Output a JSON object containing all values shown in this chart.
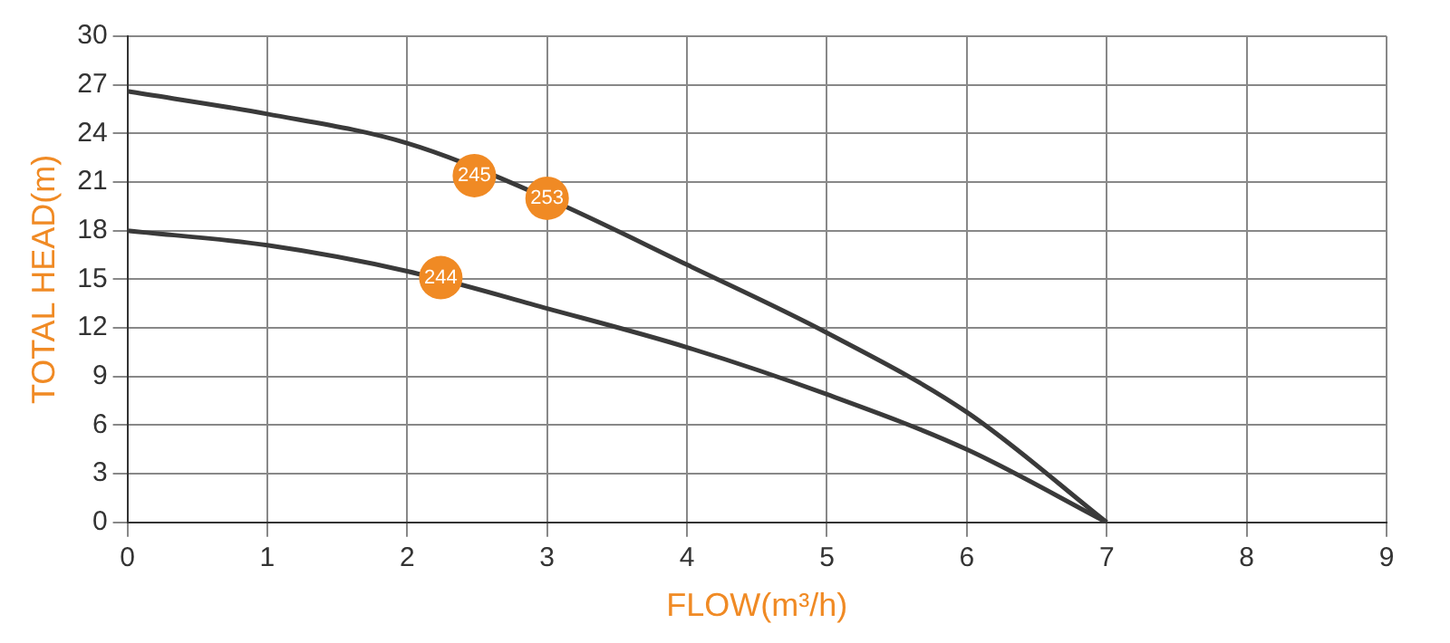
{
  "chart_data": {
    "type": "line",
    "xlabel": "FLOW(m³/h)",
    "ylabel": "TOTAL HEAD(m)",
    "xlim": [
      0,
      9
    ],
    "xticks": [
      0,
      1,
      2,
      3,
      4,
      5,
      6,
      7,
      8,
      9
    ],
    "ylim": [
      0,
      30
    ],
    "yticks": [
      0,
      3,
      6,
      9,
      12,
      15,
      18,
      21,
      24,
      27,
      30
    ],
    "grid": true,
    "legend": false,
    "marker": "none",
    "line_style": "solid",
    "series": [
      {
        "color": "#3a3a3a",
        "x": [
          0,
          1,
          2,
          3,
          4,
          5,
          6,
          7
        ],
        "values": [
          26.6,
          25.2,
          23.4,
          20,
          15.9,
          11.7,
          6.8,
          0
        ]
      },
      {
        "color": "#3a3a3a",
        "x": [
          0,
          1,
          2,
          3,
          4,
          5,
          6,
          7
        ],
        "values": [
          18,
          17.1,
          15.5,
          13.2,
          10.8,
          7.9,
          4.5,
          0
        ]
      }
    ],
    "annotations": [
      {
        "text": "245",
        "x": 2.48,
        "y": 21.4
      },
      {
        "text": "253",
        "x": 3,
        "y": 20
      },
      {
        "text": "244",
        "x": 2.24,
        "y": 15.1
      }
    ]
  }
}
